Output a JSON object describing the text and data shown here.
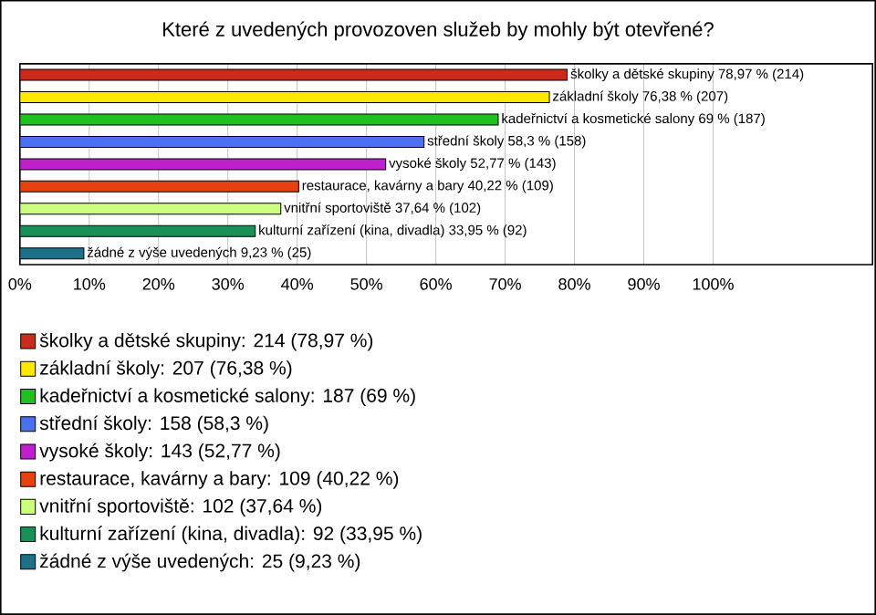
{
  "chart_data": {
    "type": "bar",
    "orientation": "horizontal",
    "title": "Které z uvedených provozoven služeb by mohly být otevřené?",
    "categories": [
      null,
      null,
      null,
      null,
      null,
      null,
      null,
      null,
      null
    ],
    "series": [
      {
        "name": "školky a dětské skupiny: 214 (78,97 %)",
        "color": "#cc2a1a",
        "values": [
          78.97,
          null,
          null,
          null,
          null,
          null,
          null,
          null,
          null
        ],
        "value_labels": [
          "školky a dětské skupiny 78,97 % (214)",
          null,
          null,
          null,
          null,
          null,
          null,
          null,
          null
        ]
      },
      {
        "name": "základní školy: 207 (76,38 %)",
        "color": "#ffe800",
        "values": [
          null,
          76.38,
          null,
          null,
          null,
          null,
          null,
          null,
          null
        ],
        "value_labels": [
          null,
          "základní školy 76,38 % (207)",
          null,
          null,
          null,
          null,
          null,
          null,
          null
        ]
      },
      {
        "name": "kadeřnictví a kosmetické salony: 187 (69 %)",
        "color": "#20c020",
        "values": [
          null,
          null,
          69,
          null,
          null,
          null,
          null,
          null,
          null
        ],
        "value_labels": [
          null,
          null,
          "kadeřnictví a kosmetické salony 69 % (187)",
          null,
          null,
          null,
          null,
          null,
          null
        ]
      },
      {
        "name": "střední školy: 158 (58,3 %)",
        "color": "#4a6ff0",
        "values": [
          null,
          null,
          null,
          58.3,
          null,
          null,
          null,
          null,
          null
        ],
        "value_labels": [
          null,
          null,
          null,
          "střední školy 58,3 % (158)",
          null,
          null,
          null,
          null,
          null
        ]
      },
      {
        "name": "vysoké školy: 143 (52,77 %)",
        "color": "#c020cc",
        "values": [
          null,
          null,
          null,
          null,
          52.77,
          null,
          null,
          null,
          null
        ],
        "value_labels": [
          null,
          null,
          null,
          null,
          "vysoké školy 52,77 % (143)",
          null,
          null,
          null,
          null
        ]
      },
      {
        "name": "restaurace, kavárny a bary: 109 (40,22 %)",
        "color": "#e84010",
        "values": [
          null,
          null,
          null,
          null,
          null,
          40.22,
          null,
          null,
          null
        ],
        "value_labels": [
          null,
          null,
          null,
          null,
          null,
          "restaurace, kavárny a bary 40,22 % (109)",
          null,
          null,
          null
        ]
      },
      {
        "name": "vnitřní sportoviště: 102 (37,64 %)",
        "color": "#ccff80",
        "values": [
          null,
          null,
          null,
          null,
          null,
          null,
          37.64,
          null,
          null
        ],
        "value_labels": [
          null,
          null,
          null,
          null,
          null,
          null,
          "vnitřní sportoviště 37,64 % (102)",
          null,
          null
        ]
      },
      {
        "name": "kulturní zařízení (kina, divadla): 92 (33,95 %)",
        "color": "#189058",
        "values": [
          null,
          null,
          null,
          null,
          null,
          null,
          null,
          33.95,
          null
        ],
        "value_labels": [
          null,
          null,
          null,
          null,
          null,
          null,
          null,
          "kulturní zařízení (kina, divadla) 33,95 % (92)",
          null
        ]
      },
      {
        "name": "žádné z výše uvedených: 25 (9,23 %)",
        "color": "#1c7088",
        "values": [
          null,
          null,
          null,
          null,
          null,
          null,
          null,
          null,
          9.23
        ],
        "value_labels": [
          null,
          null,
          null,
          null,
          null,
          null,
          null,
          null,
          "žádné z výše uvedených 9,23 % (25)"
        ]
      }
    ],
    "xlim": [
      0,
      123
    ],
    "xticks": [
      {
        "value": 0,
        "label": "0%"
      },
      {
        "value": 10,
        "label": "10%"
      },
      {
        "value": 20,
        "label": "20%"
      },
      {
        "value": 30,
        "label": "30%"
      },
      {
        "value": 40,
        "label": "40%"
      },
      {
        "value": 50,
        "label": "50%"
      },
      {
        "value": 60,
        "label": "60%"
      },
      {
        "value": 70,
        "label": "70%"
      },
      {
        "value": 80,
        "label": "80%"
      },
      {
        "value": 90,
        "label": "90%"
      },
      {
        "value": 100,
        "label": "100%"
      }
    ],
    "grid": "x",
    "legend": "bottom",
    "tick_labels": "x"
  }
}
